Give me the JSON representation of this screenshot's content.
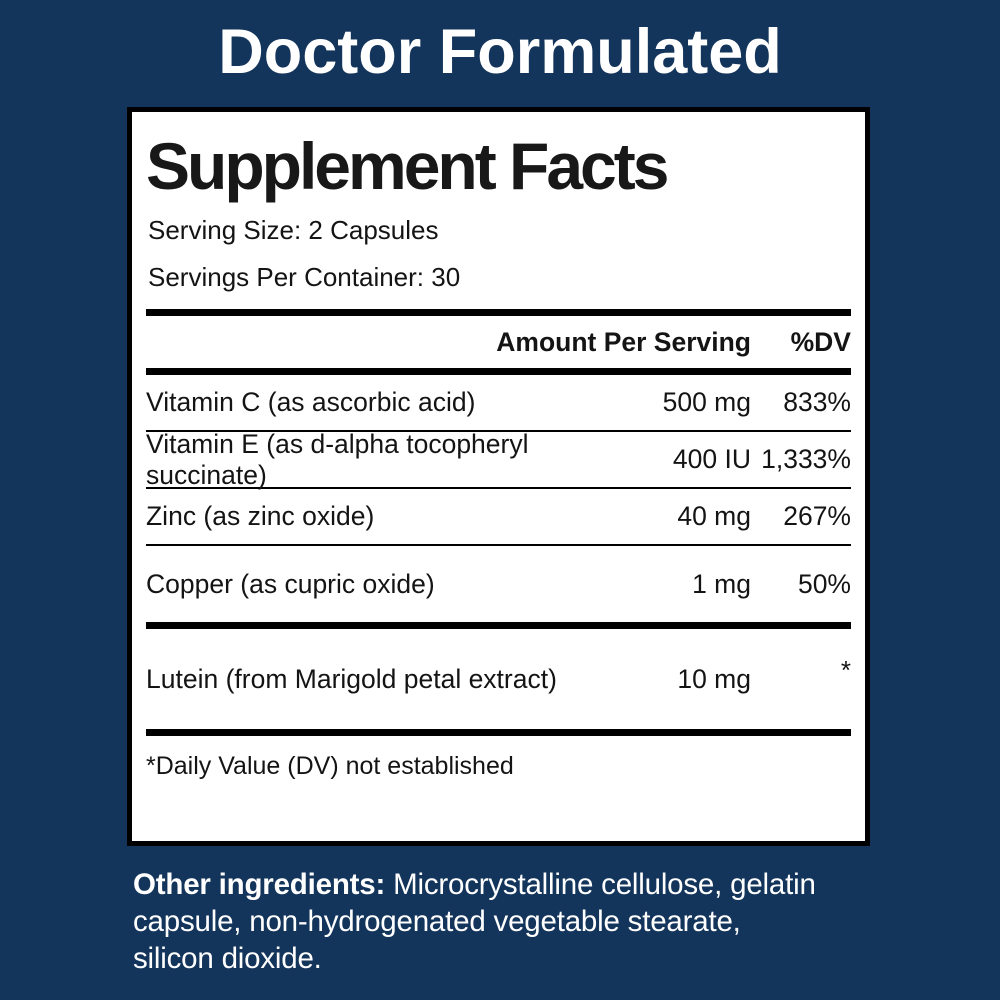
{
  "colors": {
    "background": "#14355b",
    "panel_background": "#ffffff",
    "panel_border": "#000000",
    "panel_text": "#141414",
    "title_text": "#ffffff"
  },
  "header": {
    "title": "Doctor Formulated"
  },
  "panel": {
    "title": "Supplement Facts",
    "serving_size": "Serving Size: 2 Capsules",
    "servings_per_container": "Servings Per Container: 30",
    "columns": {
      "amount": "Amount Per Serving",
      "dv": "%DV"
    },
    "main_rows": [
      {
        "name": "Vitamin C (as ascorbic acid)",
        "amount": "500 mg",
        "dv": "833%"
      },
      {
        "name": "Vitamin E (as d-alpha tocopheryl succinate)",
        "amount": "400 IU",
        "dv": "1,333%"
      },
      {
        "name": "Zinc (as zinc oxide)",
        "amount": "40 mg",
        "dv": "267%"
      },
      {
        "name": "Copper (as cupric oxide)",
        "amount": "1 mg",
        "dv": "50%"
      }
    ],
    "extra_row": {
      "name": "Lutein (from Marigold petal extract)",
      "amount": "10 mg",
      "dv": "*"
    },
    "footnote": "*Daily Value (DV) not established"
  },
  "other_ingredients": {
    "label": "Other ingredients:",
    "line1": " Microcrystalline cellulose, gelatin",
    "line2": "capsule, non-hydrogenated vegetable stearate,",
    "line3": "silicon dioxide."
  }
}
